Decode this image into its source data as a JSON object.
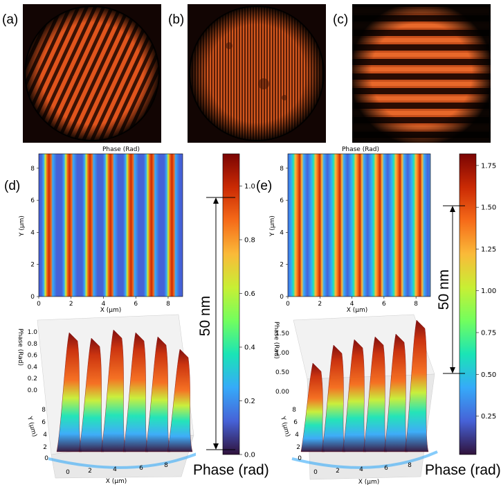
{
  "panels": {
    "a": {
      "label": "(a)",
      "pattern": "diagonal-fringes"
    },
    "b": {
      "label": "(b)",
      "pattern": "fine-vertical-fringes"
    },
    "c": {
      "label": "(c)",
      "pattern": "horizontal-fringes"
    },
    "d": {
      "label": "(d)"
    },
    "e": {
      "label": "(e)"
    }
  },
  "maps": {
    "d": {
      "title": "Phase (Rad)",
      "xlabel": "X (μm)",
      "ylabel": "Y (μm)",
      "xticks": [
        "0",
        "2",
        "4",
        "6",
        "8"
      ],
      "yticks": [
        "0",
        "2",
        "4",
        "6",
        "8"
      ],
      "stripes": 7
    },
    "e": {
      "title": "Phase (Rad)",
      "xlabel": "X (μm)",
      "ylabel": "Y (μm)",
      "xticks": [
        "0",
        "2",
        "4",
        "6",
        "8"
      ],
      "yticks": [
        "0",
        "2",
        "4",
        "6",
        "8"
      ],
      "stripes": 7
    }
  },
  "surfaces": {
    "d": {
      "zlabel": "Phase (Rad)",
      "ylabel": "Y (μm)",
      "xlabel": "X (μm)",
      "zticks": [
        "1.0",
        "0.8",
        "0.6",
        "0.4",
        "0.2",
        "0.0"
      ],
      "yticks": [
        "8",
        "6",
        "4",
        "2",
        "0"
      ],
      "xticks": [
        "0",
        "2",
        "4",
        "6",
        "8"
      ],
      "peaks": 6
    },
    "e": {
      "zlabel": "Phase (Rad)",
      "ylabel": "Y (μm)",
      "xlabel": "X (μm)",
      "zticks": [
        "1.50",
        "1.00",
        "0.50",
        "0.00"
      ],
      "yticks": [
        "8",
        "6",
        "4",
        "2",
        "0"
      ],
      "xticks": [
        "0",
        "2",
        "4",
        "6",
        "8"
      ],
      "peaks": 6
    }
  },
  "colorbars": {
    "d": {
      "ticks": [
        "1.0",
        "0.8",
        "0.6",
        "0.4",
        "0.2",
        "0.0"
      ],
      "min": 0.0,
      "max": 1.12
    },
    "e": {
      "ticks": [
        "1.75",
        "1.50",
        "1.25",
        "1.00",
        "0.75",
        "0.50",
        "0.25"
      ],
      "min": 0.02,
      "max": 1.82
    }
  },
  "scale_bars": {
    "d": {
      "label": "50 nm"
    },
    "e": {
      "label": "50 nm"
    }
  },
  "colorbar_labels": {
    "d": "Phase (rad)",
    "e": "Phase (rad)"
  },
  "colors": {
    "fringe_bright": "#e0541c",
    "fringe_dark": "#3a1204",
    "cmap": [
      "#30123b",
      "#4662d7",
      "#36aaf9",
      "#1ae4b6",
      "#72fe5e",
      "#c8ef34",
      "#faba39",
      "#f66b19",
      "#ca2a04",
      "#7a0403"
    ]
  }
}
